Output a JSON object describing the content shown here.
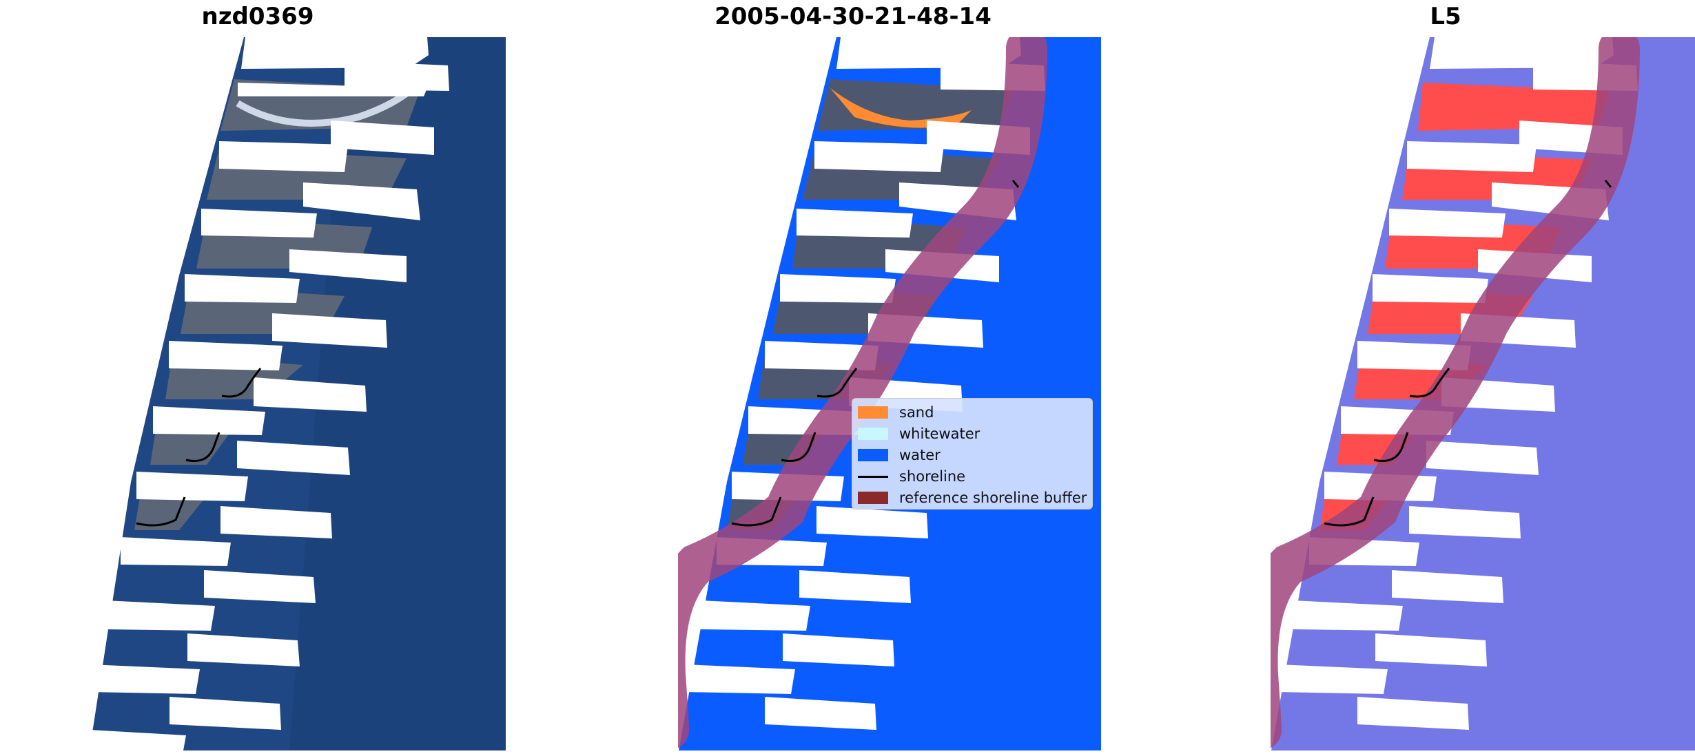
{
  "panels": {
    "left": {
      "title": "nzd0369"
    },
    "middle": {
      "title": "2005-04-30-21-48-14"
    },
    "right": {
      "title": "L5"
    }
  },
  "legend": {
    "items": [
      {
        "label": "sand",
        "color": "#ff8c33",
        "kind": "patch"
      },
      {
        "label": "whitewater",
        "color": "#c8f7ff",
        "kind": "patch"
      },
      {
        "label": "water",
        "color": "#0a5cff",
        "kind": "patch"
      },
      {
        "label": "shoreline",
        "color": "#000000",
        "kind": "line"
      },
      {
        "label": "reference shoreline buffer",
        "color": "#8b2a2a",
        "kind": "patch"
      }
    ]
  },
  "colors": {
    "ocean": "#1f4a85",
    "water_class": "#0a5cff",
    "land": "#4a5566",
    "buffer": "#b04a86",
    "index_blue": "#6f72e8",
    "index_red": "#ff4a4a"
  }
}
